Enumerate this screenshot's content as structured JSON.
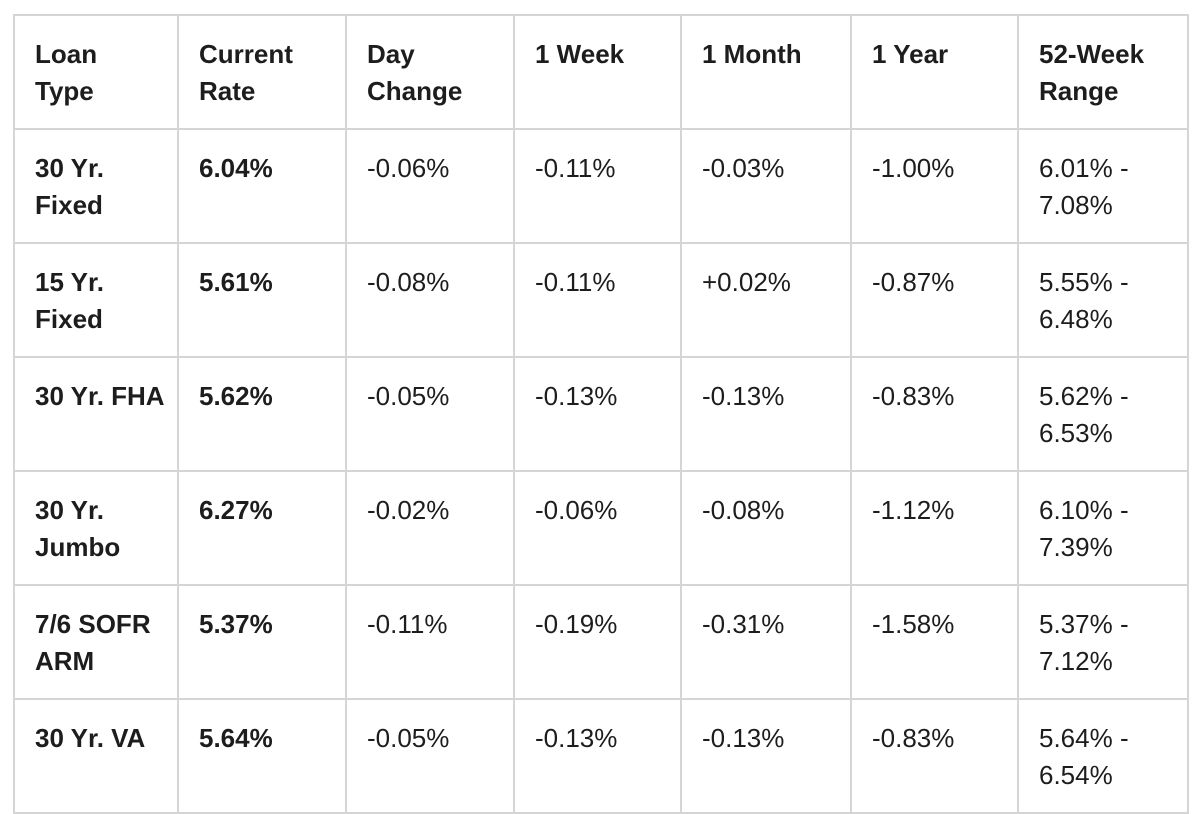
{
  "colors": {
    "background": "#ffffff",
    "border": "#d5d5d5",
    "text": "#1d1d1d"
  },
  "table": {
    "headers": [
      "Loan\nType",
      "Current\nRate",
      "Day\nChange",
      "1 Week",
      "1 Month",
      "1 Year",
      "52-Week\nRange"
    ],
    "rows": [
      [
        "30 Yr.\nFixed",
        "6.04%",
        "-0.06%",
        "-0.11%",
        "-0.03%",
        "-1.00%",
        "6.01% -\n7.08%"
      ],
      [
        "15 Yr.\nFixed",
        "5.61%",
        "-0.08%",
        "-0.11%",
        "+0.02%",
        "-0.87%",
        "5.55% -\n6.48%"
      ],
      [
        "30 Yr. FHA",
        "5.62%",
        "-0.05%",
        "-0.13%",
        "-0.13%",
        "-0.83%",
        "5.62% -\n6.53%"
      ],
      [
        "30 Yr.\nJumbo",
        "6.27%",
        "-0.02%",
        "-0.06%",
        "-0.08%",
        "-1.12%",
        "6.10% -\n7.39%"
      ],
      [
        "7/6 SOFR\nARM",
        "5.37%",
        "-0.11%",
        "-0.19%",
        "-0.31%",
        "-1.58%",
        "5.37% -\n7.12%"
      ],
      [
        "30 Yr. VA",
        "5.64%",
        "-0.05%",
        "-0.13%",
        "-0.13%",
        "-0.83%",
        "5.64% -\n6.54%"
      ]
    ]
  },
  "chart_data": {
    "type": "table",
    "columns": [
      "Loan Type",
      "Current Rate",
      "Day Change",
      "1 Week",
      "1 Month",
      "1 Year",
      "52-Week Range"
    ],
    "rows": [
      [
        "30 Yr. Fixed",
        "6.04%",
        "-0.06%",
        "-0.11%",
        "-0.03%",
        "-1.00%",
        "6.01% - 7.08%"
      ],
      [
        "15 Yr. Fixed",
        "5.61%",
        "-0.08%",
        "-0.11%",
        "+0.02%",
        "-0.87%",
        "5.55% - 6.48%"
      ],
      [
        "30 Yr. FHA",
        "5.62%",
        "-0.05%",
        "-0.13%",
        "-0.13%",
        "-0.83%",
        "5.62% - 6.53%"
      ],
      [
        "30 Yr. Jumbo",
        "6.27%",
        "-0.02%",
        "-0.06%",
        "-0.08%",
        "-1.12%",
        "6.10% - 7.39%"
      ],
      [
        "7/6 SOFR ARM",
        "5.37%",
        "-0.11%",
        "-0.19%",
        "-0.31%",
        "-1.58%",
        "5.37% - 7.12%"
      ],
      [
        "30 Yr. VA",
        "5.64%",
        "-0.05%",
        "-0.13%",
        "-0.13%",
        "-0.83%",
        "5.64% - 6.54%"
      ]
    ],
    "notes": {
      "bold_columns": [
        "Loan Type",
        "Current Rate"
      ],
      "grid": "on",
      "units": "percent"
    }
  }
}
